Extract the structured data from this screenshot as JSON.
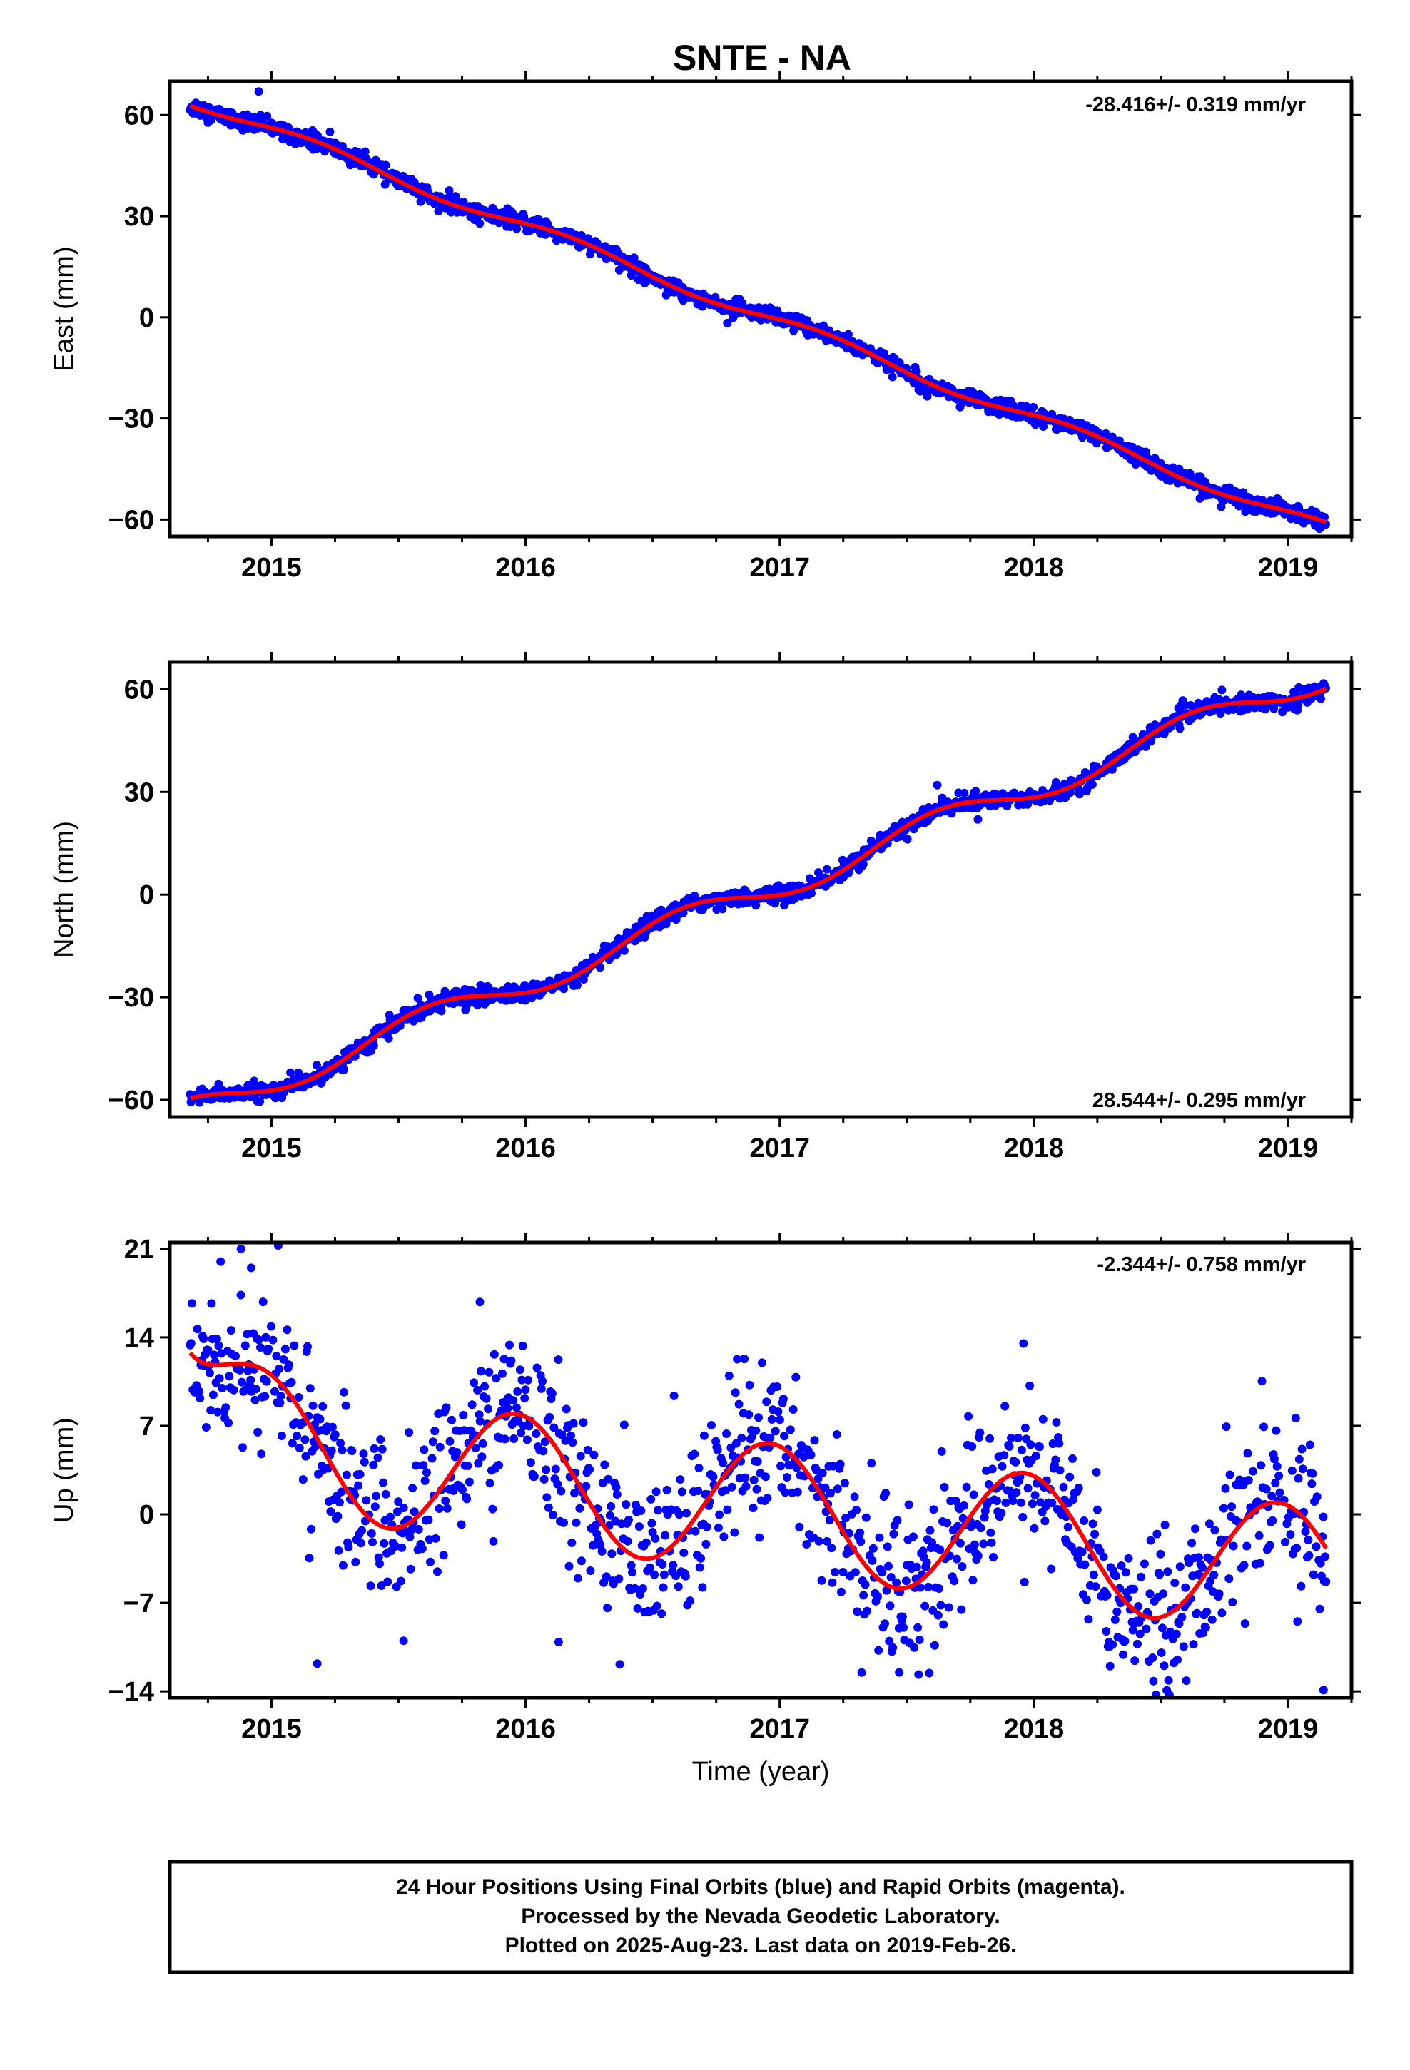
{
  "title": "SNTE - NA",
  "colors": {
    "data": "#0000ff",
    "model": "#ff0000",
    "frame": "#000000"
  },
  "notes": [
    "24 Hour Positions Using Final Orbits (blue) and Rapid Orbits (magenta).",
    "Processed by the Nevada Geodetic Laboratory.",
    "Plotted on 2025-Aug-23. Last data on 2019-Feb-26."
  ],
  "chart_data": [
    {
      "type": "scatter",
      "ylabel": "East (mm)",
      "xlabel": "",
      "xlim": [
        2014.6,
        2019.25
      ],
      "ylim": [
        -65,
        70
      ],
      "xticks": [
        2015,
        2016,
        2017,
        2018,
        2019
      ],
      "xtick_labels": [
        "2015",
        "2016",
        "2017",
        "2018",
        "2019"
      ],
      "yticks": [
        -60,
        -30,
        0,
        30,
        60
      ],
      "ytick_labels": [
        "−60",
        "−30",
        "0",
        "30",
        "60"
      ],
      "rate_label": "-28.416+/- 0.319 mm/yr",
      "rate_position": "top-right",
      "grid": false,
      "series": [
        {
          "kind": "points",
          "color": "#0000ff",
          "start": 2014.68,
          "end": 2019.15,
          "noise": 1.2,
          "model": {
            "offset": 0,
            "ref_year": 2016.95,
            "rate": -28.416,
            "annual": [
              1.6,
              0.8
            ]
          }
        },
        {
          "kind": "line",
          "color": "#ff0000",
          "start": 2014.68,
          "end": 2019.15,
          "model": {
            "offset": 0,
            "ref_year": 2016.95,
            "rate": -28.416,
            "annual": [
              1.6,
              0.8
            ]
          }
        }
      ],
      "outliers": [
        [
          2014.95,
          67
        ],
        [
          2015.23,
          55
        ],
        [
          2015.2,
          52
        ]
      ]
    },
    {
      "type": "scatter",
      "ylabel": "North (mm)",
      "xlabel": "",
      "xlim": [
        2014.6,
        2019.25
      ],
      "ylim": [
        -65,
        68
      ],
      "xticks": [
        2015,
        2016,
        2017,
        2018,
        2019
      ],
      "xtick_labels": [
        "2015",
        "2016",
        "2017",
        "2018",
        "2019"
      ],
      "yticks": [
        -60,
        -30,
        0,
        30,
        60
      ],
      "ytick_labels": [
        "−60",
        "−30",
        "0",
        "30",
        "60"
      ],
      "rate_label": "28.544+/- 0.295 mm/yr",
      "rate_position": "bottom-right",
      "grid": false,
      "series": [
        {
          "kind": "points",
          "color": "#0000ff",
          "start": 2014.68,
          "end": 2019.15,
          "noise": 1.2,
          "model": {
            "offset": 0,
            "ref_year": 2016.9,
            "rate": 28.544,
            "annual": [
              -2.8,
              -3.0
            ]
          }
        },
        {
          "kind": "line",
          "color": "#ff0000",
          "start": 2014.68,
          "end": 2019.15,
          "model": {
            "offset": 0,
            "ref_year": 2016.9,
            "rate": 28.544,
            "annual": [
              -2.8,
              -3.0
            ]
          }
        }
      ],
      "outliers": [
        [
          2017.62,
          32
        ],
        [
          2017.78,
          22
        ]
      ]
    },
    {
      "type": "scatter",
      "ylabel": "Up (mm)",
      "xlabel": "Time (year)",
      "xlim": [
        2014.6,
        2019.25
      ],
      "ylim": [
        -14.5,
        21.5
      ],
      "xticks": [
        2015,
        2016,
        2017,
        2018,
        2019
      ],
      "xtick_labels": [
        "2015",
        "2016",
        "2017",
        "2018",
        "2019"
      ],
      "yticks": [
        -14,
        -7,
        0,
        7,
        14,
        21
      ],
      "ytick_labels": [
        "−14",
        "−7",
        "0",
        "7",
        "14",
        "21"
      ],
      "rate_label": "-2.344+/- 0.758 mm/yr",
      "rate_position": "top-right",
      "grid": false,
      "series": [
        {
          "kind": "points",
          "color": "#0000ff",
          "start": 2014.68,
          "end": 2019.15,
          "noise": 3.1,
          "step": 0.0035,
          "model": {
            "offset": 0.5,
            "ref_year": 2016.95,
            "rate": -2.344,
            "annual": [
              -1.2,
              5.0
            ],
            "transient": [
              8.0,
              0.15
            ]
          }
        },
        {
          "kind": "line",
          "color": "#ff0000",
          "start": 2014.68,
          "end": 2019.15,
          "model": {
            "offset": 0.5,
            "ref_year": 2016.95,
            "rate": -2.344,
            "annual": [
              -1.2,
              5.0
            ],
            "transient": [
              8.0,
              0.15
            ]
          }
        }
      ],
      "outliers": [
        [
          2014.88,
          21
        ],
        [
          2014.8,
          20
        ],
        [
          2014.92,
          19.5
        ],
        [
          2015.82,
          16.8
        ],
        [
          2015.18,
          -11.8
        ],
        [
          2016.13,
          -10.1
        ],
        [
          2017.47,
          -12.5
        ],
        [
          2018.3,
          -12
        ],
        [
          2019.14,
          -13.9
        ],
        [
          2015.52,
          -10
        ]
      ]
    }
  ]
}
